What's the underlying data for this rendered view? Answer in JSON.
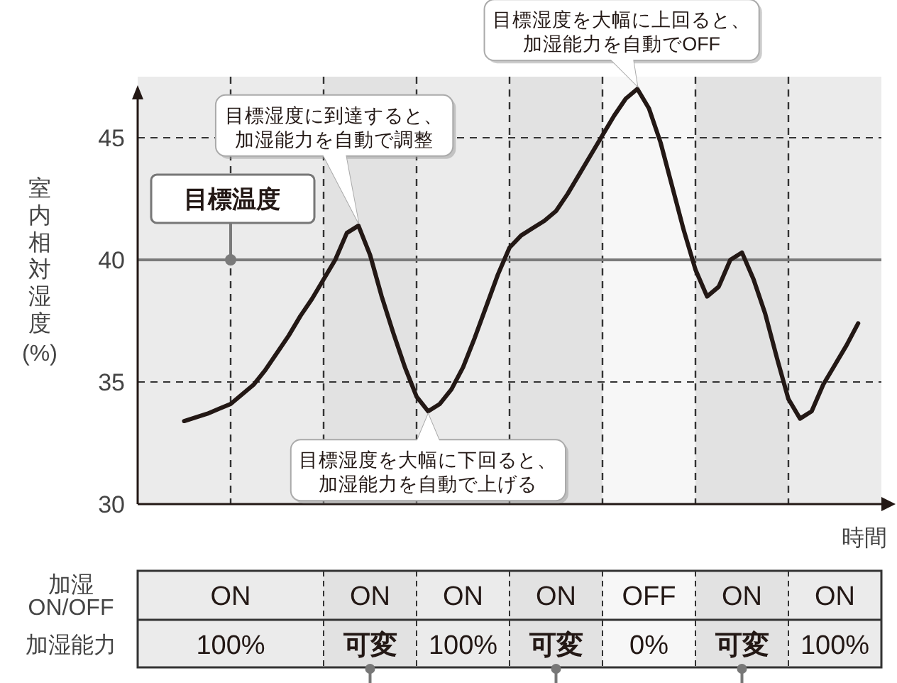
{
  "chart_data": [
    {
      "type": "line",
      "ylabel": "室内相対湿度\n(%)",
      "xlabel": "時間",
      "categories": [
        null,
        null,
        null,
        null,
        null,
        null,
        null,
        null,
        null,
        null,
        null,
        null,
        null,
        null,
        null,
        null,
        null,
        null,
        null,
        null,
        null,
        null,
        null,
        null,
        null,
        null,
        null,
        null,
        null,
        null,
        null,
        null,
        null,
        null,
        null,
        null,
        null,
        null,
        null,
        null,
        null,
        null,
        null,
        null,
        null,
        null,
        null,
        null,
        null,
        null,
        null,
        null,
        null,
        null,
        null,
        null,
        null,
        null,
        null,
        null,
        null,
        null,
        null,
        null,
        null
      ],
      "series": [
        {
          "color": "#231815",
          "values": [
            null,
            null,
            null,
            null,
            33.4,
            33.55,
            33.7,
            33.9,
            34.1,
            34.5,
            34.9,
            35.5,
            36.2,
            36.9,
            37.7,
            38.4,
            39.2,
            40.0,
            41.1,
            41.4,
            40.2,
            38.5,
            37.0,
            35.6,
            34.4,
            33.8,
            34.1,
            34.7,
            35.6,
            36.8,
            38.1,
            39.4,
            40.5,
            41.0,
            41.3,
            41.6,
            42.0,
            42.7,
            43.5,
            44.3,
            45.1,
            45.9,
            46.6,
            47.0,
            46.2,
            44.8,
            43.0,
            41.2,
            39.6,
            38.5,
            38.9,
            40.0,
            40.3,
            39.2,
            37.8,
            36.0,
            34.3,
            33.5,
            33.8,
            34.9,
            35.7,
            36.5,
            37.4,
            null,
            null
          ]
        }
      ],
      "ylim": [
        30,
        47.5
      ],
      "yticks": [
        30,
        35,
        40,
        45
      ],
      "tick_labels": "y",
      "grid": true,
      "ref_lines": [
        {
          "axis": "y",
          "value": 40,
          "label": "目標温度",
          "color": "#7a7a7a",
          "line_style": "solid"
        }
      ],
      "annotations": [
        "目標湿度に到達すると、加湿能力を自動で調整",
        {
          "text": "目標湿度を大幅に下回ると、加湿能力を自動で上げる",
          "y": 33.8
        },
        "目標湿度を大幅に上回ると、加湿能力を自動でOFF"
      ]
    },
    {
      "type": "other",
      "y_categories": [
        "加湿\nON/OFF",
        "加湿能力"
      ],
      "cell_labels": [
        [
          "ON",
          "ON",
          "ON",
          "ON",
          "OFF",
          "ON",
          "ON"
        ],
        [
          "100%",
          "可変",
          "100%",
          "可変",
          "0%",
          "可変",
          "100%"
        ]
      ],
      "colors": [
        "#ebebeb",
        "#e2e2e2",
        "#ebebeb",
        "#e2e2e2",
        "#f7f7f7",
        "#e2e2e2",
        "#ebebeb"
      ]
    }
  ]
}
